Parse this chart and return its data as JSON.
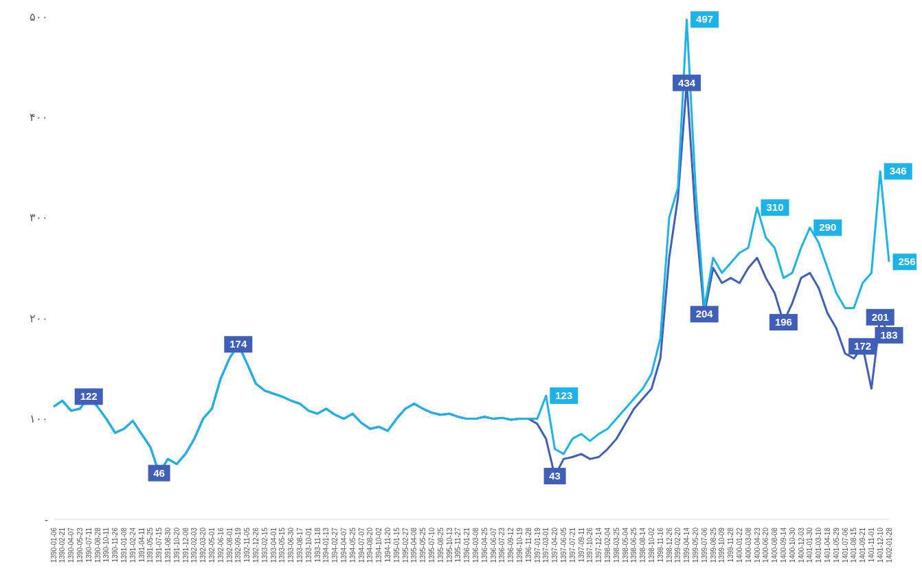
{
  "chart_data": {
    "type": "line",
    "categories": [
      "1390-01-06",
      "1390-02-21",
      "1390-04-07",
      "1390-05-23",
      "1390-07-11",
      "1390-08-28",
      "1390-10-11",
      "1390-11-26",
      "1391-01-08",
      "1391-02-24",
      "1391-04-11",
      "1391-05-25",
      "1391-07-15",
      "1391-08-30",
      "1391-10-20",
      "1391-12-08",
      "1392-02-03",
      "1392-03-20",
      "1392-05-01",
      "1392-06-16",
      "1392-08-01",
      "1392-09-19",
      "1392-11-05",
      "1392-12-26",
      "1393-02-15",
      "1393-04-01",
      "1393-05-15",
      "1393-06-30",
      "1393-08-17",
      "1393-10-01",
      "1393-11-18",
      "1394-01-13",
      "1394-02-27",
      "1394-04-07",
      "1394-05-25",
      "1394-07-07",
      "1394-08-20",
      "1394-10-02",
      "1394-11-20",
      "1395-01-15",
      "1395-02-27",
      "1395-04-08",
      "1395-05-25",
      "1395-07-10",
      "1395-08-25",
      "1395-10-13",
      "1395-11-27",
      "1396-01-21",
      "1396-03-08",
      "1396-04-25",
      "1396-06-07",
      "1396-07-23",
      "1396-09-12",
      "1396-10-19",
      "1396-11-28",
      "1397-01-19",
      "1397-03-01",
      "1397-04-20",
      "1397-06-05",
      "1397-07-21",
      "1397-09-11",
      "1397-10-26",
      "1397-12-14",
      "1398-02-04",
      "1398-03-25",
      "1398-05-04",
      "1398-06-25",
      "1398-08-14",
      "1398-10-02",
      "1398-11-16",
      "1398-12-26",
      "1399-02-20",
      "1399-04-14",
      "1399-05-20",
      "1399-07-06",
      "1399-08-25",
      "1399-10-09",
      "1399-11-28",
      "1400-01-22",
      "1400-03-08",
      "1400-04-23",
      "1400-06-20",
      "1400-08-08",
      "1400-09-14",
      "1400-10-30",
      "1400-12-03",
      "1401-01-30",
      "1401-03-10",
      "1401-04-18",
      "1401-05-29",
      "1401-07-06",
      "1401-08-15",
      "1401-09-21",
      "1401-11-01",
      "1401-12-10",
      "1402-01-28"
    ],
    "series": [
      {
        "color": "#3f5fb8",
        "values": [
          112,
          118,
          108,
          110,
          122,
          112,
          100,
          86,
          90,
          98,
          85,
          72,
          46,
          60,
          55,
          65,
          80,
          100,
          110,
          140,
          160,
          174,
          155,
          135,
          128,
          125,
          122,
          118,
          115,
          108,
          105,
          110,
          104,
          100,
          105,
          96,
          90,
          92,
          88,
          100,
          110,
          115,
          110,
          106,
          104,
          105,
          102,
          100,
          100,
          102,
          100,
          101,
          99,
          100,
          100,
          95,
          80,
          43,
          60,
          62,
          65,
          60,
          62,
          70,
          80,
          95,
          110,
          120,
          130,
          160,
          260,
          320,
          434,
          300,
          204,
          250,
          235,
          240,
          235,
          250,
          260,
          240,
          225,
          196,
          215,
          240,
          245,
          230,
          205,
          190,
          165,
          160,
          172,
          130,
          201,
          183
        ],
        "value_labels": [
          null,
          null,
          null,
          null,
          "122",
          null,
          null,
          null,
          null,
          null,
          null,
          null,
          "46",
          null,
          null,
          null,
          null,
          null,
          null,
          null,
          null,
          "174",
          null,
          null,
          null,
          null,
          null,
          null,
          null,
          null,
          null,
          null,
          null,
          null,
          null,
          null,
          null,
          null,
          null,
          null,
          null,
          null,
          null,
          null,
          null,
          null,
          null,
          null,
          null,
          null,
          null,
          null,
          null,
          null,
          null,
          null,
          null,
          "43",
          null,
          null,
          null,
          null,
          null,
          null,
          null,
          null,
          null,
          null,
          null,
          null,
          null,
          null,
          "434",
          null,
          "204",
          null,
          null,
          null,
          null,
          null,
          null,
          null,
          null,
          "196",
          null,
          null,
          null,
          null,
          null,
          null,
          null,
          null,
          "172",
          null,
          "201",
          "183"
        ]
      },
      {
        "color": "#1db3ea",
        "values": [
          112,
          118,
          108,
          110,
          122,
          112,
          100,
          86,
          90,
          98,
          85,
          72,
          46,
          60,
          55,
          65,
          80,
          100,
          110,
          140,
          160,
          174,
          155,
          135,
          128,
          125,
          122,
          118,
          115,
          108,
          105,
          110,
          104,
          100,
          105,
          96,
          90,
          92,
          88,
          100,
          110,
          115,
          110,
          106,
          104,
          105,
          102,
          100,
          100,
          102,
          100,
          101,
          99,
          100,
          100,
          100,
          123,
          70,
          65,
          80,
          85,
          78,
          85,
          90,
          100,
          110,
          120,
          130,
          145,
          180,
          300,
          330,
          497,
          330,
          210,
          260,
          245,
          255,
          265,
          270,
          310,
          280,
          270,
          240,
          245,
          270,
          290,
          275,
          250,
          225,
          210,
          210,
          235,
          245,
          346,
          256
        ],
        "value_labels": [
          null,
          null,
          null,
          null,
          null,
          null,
          null,
          null,
          null,
          null,
          null,
          null,
          null,
          null,
          null,
          null,
          null,
          null,
          null,
          null,
          null,
          null,
          null,
          null,
          null,
          null,
          null,
          null,
          null,
          null,
          null,
          null,
          null,
          null,
          null,
          null,
          null,
          null,
          null,
          null,
          null,
          null,
          null,
          null,
          null,
          null,
          null,
          null,
          null,
          null,
          null,
          null,
          null,
          null,
          null,
          null,
          "123",
          null,
          null,
          null,
          null,
          null,
          null,
          null,
          null,
          null,
          null,
          null,
          null,
          null,
          null,
          null,
          "497",
          null,
          null,
          null,
          null,
          null,
          null,
          null,
          "310",
          null,
          null,
          null,
          null,
          null,
          "290",
          null,
          null,
          null,
          null,
          null,
          null,
          null,
          "346",
          "256"
        ]
      }
    ],
    "ylim": [
      0,
      500
    ],
    "yticks": [
      {
        "value": 0,
        "label": "-"
      },
      {
        "value": 100,
        "label": "۱۰۰"
      },
      {
        "value": 200,
        "label": "۲۰۰"
      },
      {
        "value": 300,
        "label": "۳۰۰"
      },
      {
        "value": 400,
        "label": "۴۰۰"
      },
      {
        "value": 500,
        "label": "۵۰۰"
      }
    ],
    "marker": "none",
    "line_style": "solid"
  }
}
